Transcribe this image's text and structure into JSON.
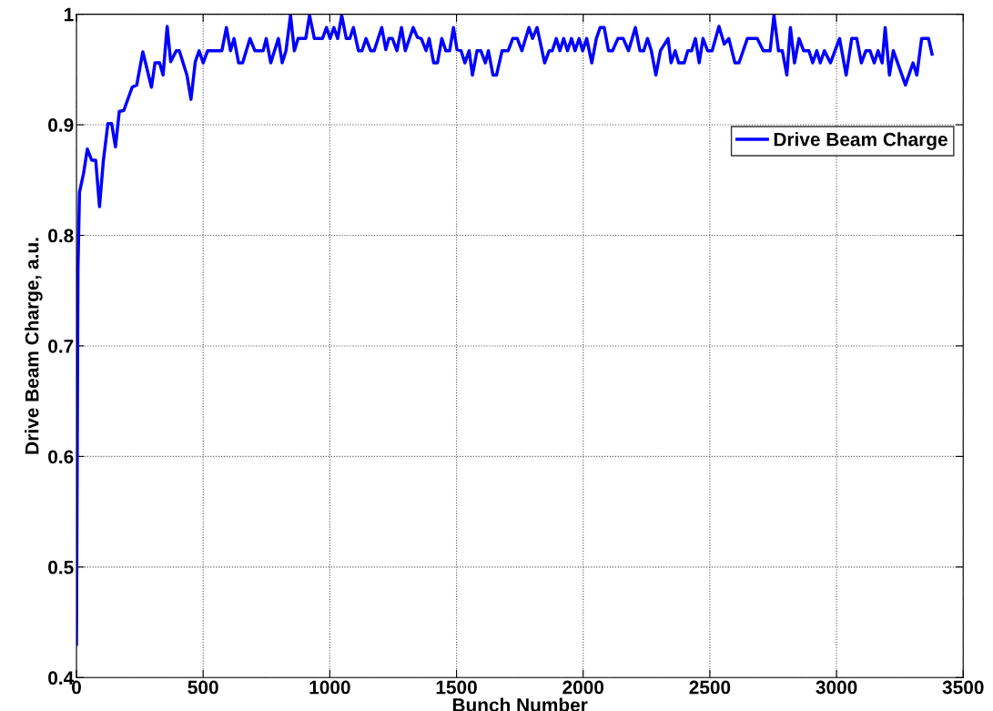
{
  "chart_data": {
    "type": "line",
    "xlabel": "Bunch Number",
    "ylabel": "Drive Beam Charge, a.u.",
    "xlim": [
      0,
      3500
    ],
    "xticks": [
      0,
      500,
      1000,
      1500,
      2000,
      2500,
      3000,
      3500
    ],
    "ylim": [
      0.4,
      1
    ],
    "yticks": [
      0.4,
      0.5,
      0.6,
      0.7,
      0.8,
      0.9,
      1
    ],
    "grid": true,
    "legend": "top right",
    "marker": "none",
    "line_style": "solid",
    "series": [
      {
        "name": "Drive Beam Charge",
        "color": "#0000ff",
        "x": [
          0,
          6,
          12,
          28,
          43,
          60,
          76,
          91,
          106,
          124,
          139,
          154,
          169,
          187,
          220,
          238,
          262,
          296,
          310,
          328,
          342,
          358,
          372,
          394,
          406,
          436,
          452,
          469,
          484,
          500,
          518,
          574,
          592,
          608,
          622,
          640,
          656,
          685,
          704,
          737,
          749,
          767,
          797,
          812,
          827,
          845,
          860,
          875,
          905,
          920,
          939,
          971,
          987,
          1001,
          1016,
          1031,
          1047,
          1065,
          1079,
          1093,
          1113,
          1127,
          1143,
          1161,
          1175,
          1205,
          1221,
          1233,
          1247,
          1265,
          1283,
          1298,
          1329,
          1346,
          1361,
          1380,
          1392,
          1410,
          1425,
          1442,
          1458,
          1473,
          1488,
          1502,
          1518,
          1533,
          1550,
          1563,
          1581,
          1596,
          1614,
          1626,
          1644,
          1658,
          1680,
          1704,
          1722,
          1740,
          1758,
          1786,
          1800,
          1818,
          1848,
          1866,
          1878,
          1894,
          1908,
          1923,
          1938,
          1954,
          1968,
          1984,
          1998,
          2014,
          2034,
          2052,
          2067,
          2083,
          2100,
          2116,
          2137,
          2158,
          2179,
          2206,
          2224,
          2239,
          2254,
          2269,
          2287,
          2305,
          2335,
          2347,
          2363,
          2377,
          2399,
          2413,
          2428,
          2443,
          2458,
          2473,
          2491,
          2509,
          2536,
          2557,
          2575,
          2599,
          2615,
          2648,
          2687,
          2711,
          2738,
          2753,
          2771,
          2786,
          2804,
          2818,
          2834,
          2852,
          2870,
          2891,
          2906,
          2922,
          2936,
          2952,
          2976,
          3012,
          3038,
          3060,
          3080,
          3098,
          3116,
          3132,
          3149,
          3164,
          3180,
          3192,
          3209,
          3224,
          3272,
          3302,
          3317,
          3336,
          3363,
          3377
        ],
        "values": [
          0.43,
          0.77,
          0.839,
          0.856,
          0.878,
          0.868,
          0.868,
          0.826,
          0.867,
          0.901,
          0.901,
          0.88,
          0.912,
          0.913,
          0.934,
          0.936,
          0.966,
          0.934,
          0.956,
          0.956,
          0.945,
          0.989,
          0.957,
          0.967,
          0.967,
          0.945,
          0.923,
          0.957,
          0.967,
          0.956,
          0.967,
          0.967,
          0.988,
          0.967,
          0.978,
          0.956,
          0.956,
          0.978,
          0.967,
          0.967,
          0.978,
          0.956,
          0.978,
          0.956,
          0.967,
          0.999,
          0.967,
          0.978,
          0.978,
          0.999,
          0.978,
          0.978,
          0.988,
          0.978,
          0.988,
          0.978,
          0.999,
          0.978,
          0.978,
          0.988,
          0.967,
          0.967,
          0.978,
          0.967,
          0.967,
          0.988,
          0.968,
          0.978,
          0.978,
          0.967,
          0.988,
          0.967,
          0.988,
          0.979,
          0.978,
          0.967,
          0.978,
          0.956,
          0.956,
          0.978,
          0.967,
          0.967,
          0.988,
          0.968,
          0.967,
          0.956,
          0.967,
          0.945,
          0.967,
          0.967,
          0.956,
          0.967,
          0.945,
          0.945,
          0.967,
          0.967,
          0.978,
          0.978,
          0.967,
          0.988,
          0.978,
          0.988,
          0.956,
          0.967,
          0.967,
          0.978,
          0.967,
          0.978,
          0.967,
          0.978,
          0.967,
          0.978,
          0.967,
          0.978,
          0.956,
          0.978,
          0.988,
          0.988,
          0.967,
          0.967,
          0.978,
          0.978,
          0.967,
          0.988,
          0.967,
          0.967,
          0.978,
          0.967,
          0.945,
          0.967,
          0.978,
          0.956,
          0.967,
          0.956,
          0.956,
          0.967,
          0.967,
          0.978,
          0.956,
          0.978,
          0.967,
          0.967,
          0.989,
          0.973,
          0.978,
          0.956,
          0.956,
          0.978,
          0.978,
          0.967,
          0.967,
          0.999,
          0.967,
          0.967,
          0.945,
          0.988,
          0.956,
          0.978,
          0.967,
          0.967,
          0.956,
          0.967,
          0.956,
          0.967,
          0.956,
          0.978,
          0.945,
          0.978,
          0.978,
          0.956,
          0.967,
          0.967,
          0.956,
          0.967,
          0.956,
          0.988,
          0.945,
          0.967,
          0.936,
          0.956,
          0.945,
          0.978,
          0.978,
          0.964
        ]
      }
    ]
  }
}
